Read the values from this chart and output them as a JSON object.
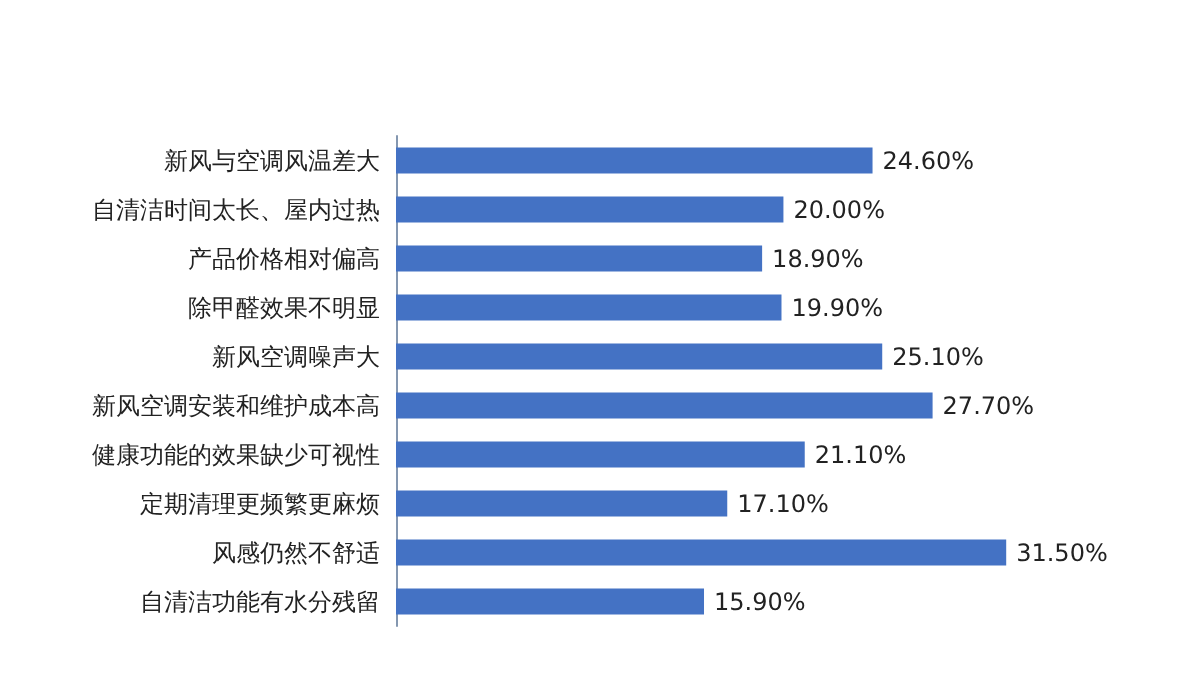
{
  "chart_data": {
    "type": "bar",
    "orientation": "horizontal",
    "categories": [
      "新风与空调风温差大",
      "自清洁时间太长、屋内过热",
      "产品价格相对偏高",
      "除甲醛效果不明显",
      "新风空调噪声大",
      "新风空调安装和维护成本高",
      "健康功能的效果缺少可视性",
      "定期清理更频繁更麻烦",
      "风感仍然不舒适",
      "自清洁功能有水分残留"
    ],
    "values": [
      24.6,
      20.0,
      18.9,
      19.9,
      25.1,
      27.7,
      21.1,
      17.1,
      31.5,
      15.9
    ],
    "value_labels": [
      "24.60%",
      "20.00%",
      "18.90%",
      "19.90%",
      "25.10%",
      "27.70%",
      "21.10%",
      "17.10%",
      "31.50%",
      "15.90%"
    ],
    "color": "#4472c4",
    "tick_labels": "y",
    "grid": false
  }
}
